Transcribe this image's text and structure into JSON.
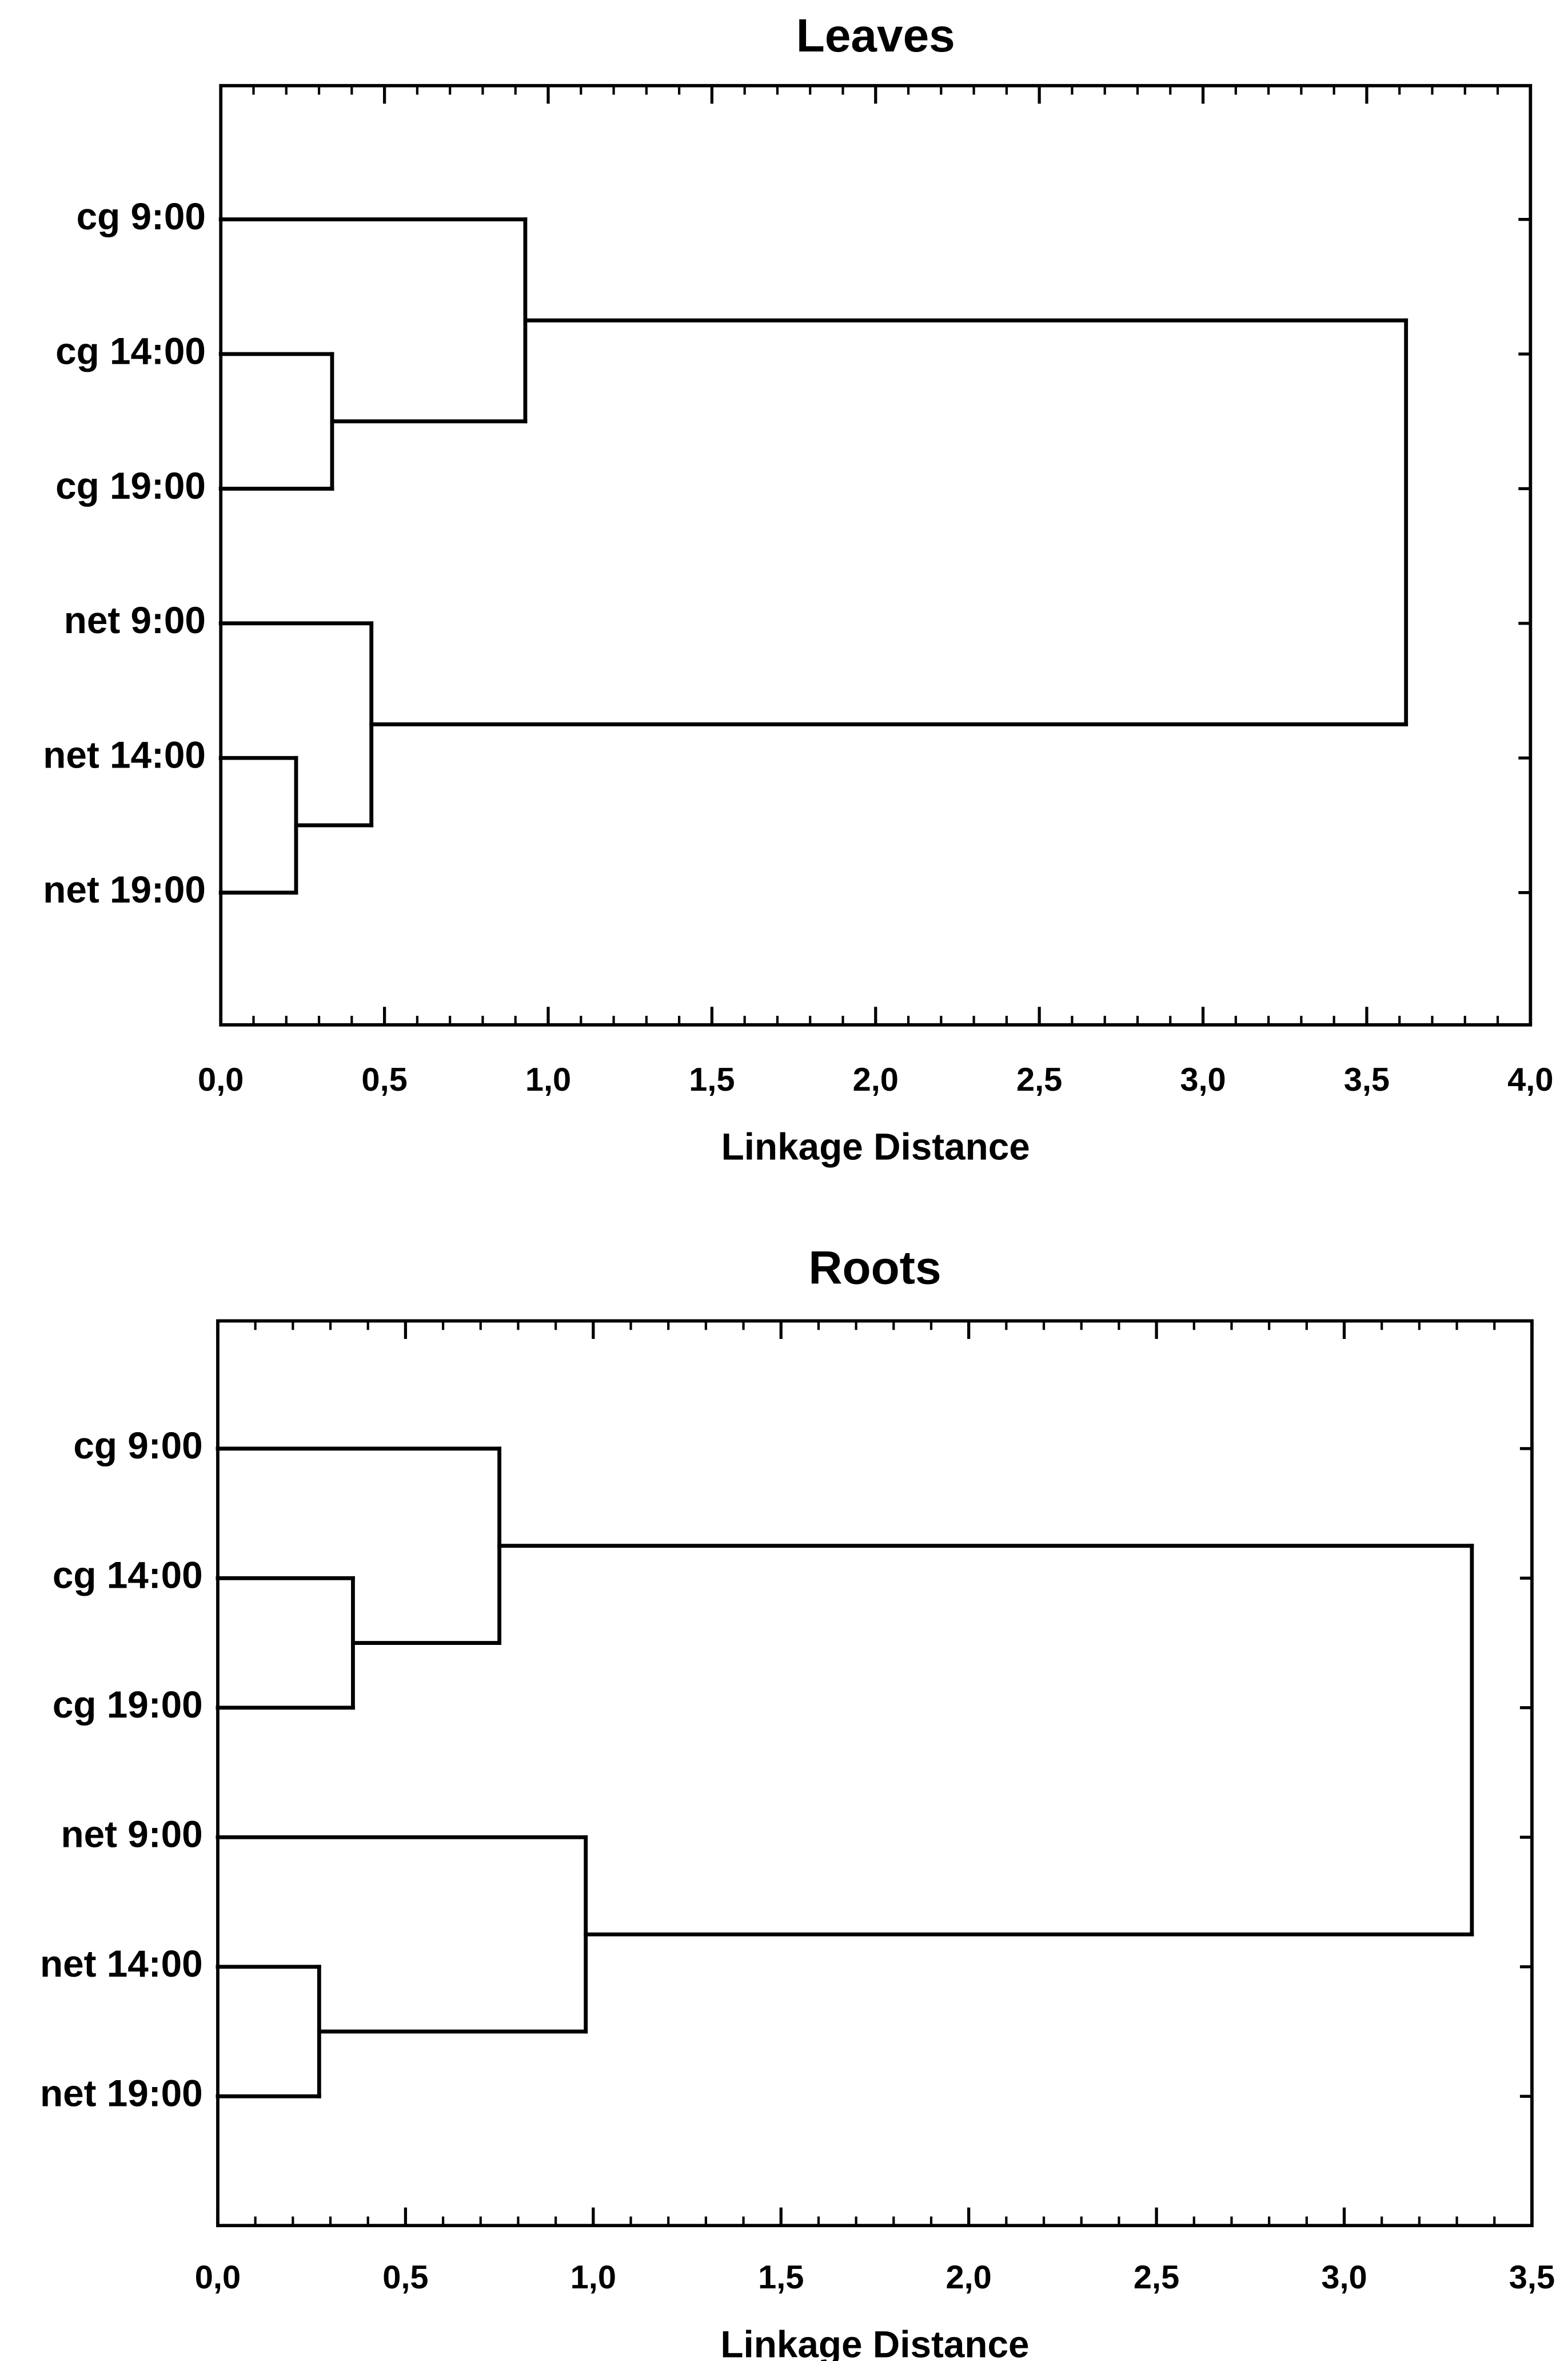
{
  "chart_data": [
    {
      "type": "dendrogram",
      "title": "Leaves",
      "xlabel": "Linkage Distance",
      "xlim": [
        0,
        4.0
      ],
      "x_ticks": [
        "0,0",
        "0,5",
        "1,0",
        "1,5",
        "2,0",
        "2,5",
        "3,0",
        "3,5",
        "4,0"
      ],
      "leaves": [
        "cg 9:00",
        "cg 14:00",
        "cg 19:00",
        "net 9:00",
        "net 14:00",
        "net 19:00"
      ],
      "merges": [
        {
          "left": "net 14:00",
          "right": "net 19:00",
          "distance": 0.23
        },
        {
          "left": "cg 14:00",
          "right": "cg 19:00",
          "distance": 0.34
        },
        {
          "left": "net 9:00",
          "right": "(net 14:00, net 19:00)",
          "distance": 0.46
        },
        {
          "left": "cg 9:00",
          "right": "(cg 14:00, cg 19:00)",
          "distance": 0.93
        },
        {
          "left": "(cg 9:00, cg 14:00, cg 19:00)",
          "right": "(net 9:00, net 14:00, net 19:00)",
          "distance": 3.62
        }
      ],
      "line_color": "#000000"
    },
    {
      "type": "dendrogram",
      "title": "Roots",
      "xlabel": "Linkage Distance",
      "xlim": [
        0,
        3.5
      ],
      "x_ticks": [
        "0,0",
        "0,5",
        "1,0",
        "1,5",
        "2,0",
        "2,5",
        "3,0",
        "3,5"
      ],
      "leaves": [
        "cg 9:00",
        "cg 14:00",
        "cg 19:00",
        "net 9:00",
        "net 14:00",
        "net 19:00"
      ],
      "merges": [
        {
          "left": "net 14:00",
          "right": "net 19:00",
          "distance": 0.27
        },
        {
          "left": "cg 14:00",
          "right": "cg 19:00",
          "distance": 0.36
        },
        {
          "left": "cg 9:00",
          "right": "(cg 14:00, cg 19:00)",
          "distance": 0.75
        },
        {
          "left": "net 9:00",
          "right": "(net 14:00, net 19:00)",
          "distance": 0.98
        },
        {
          "left": "(cg 9:00, cg 14:00, cg 19:00)",
          "right": "(net 9:00, net 14:00, net 19:00)",
          "distance": 3.34
        }
      ],
      "line_color": "#000000"
    }
  ]
}
